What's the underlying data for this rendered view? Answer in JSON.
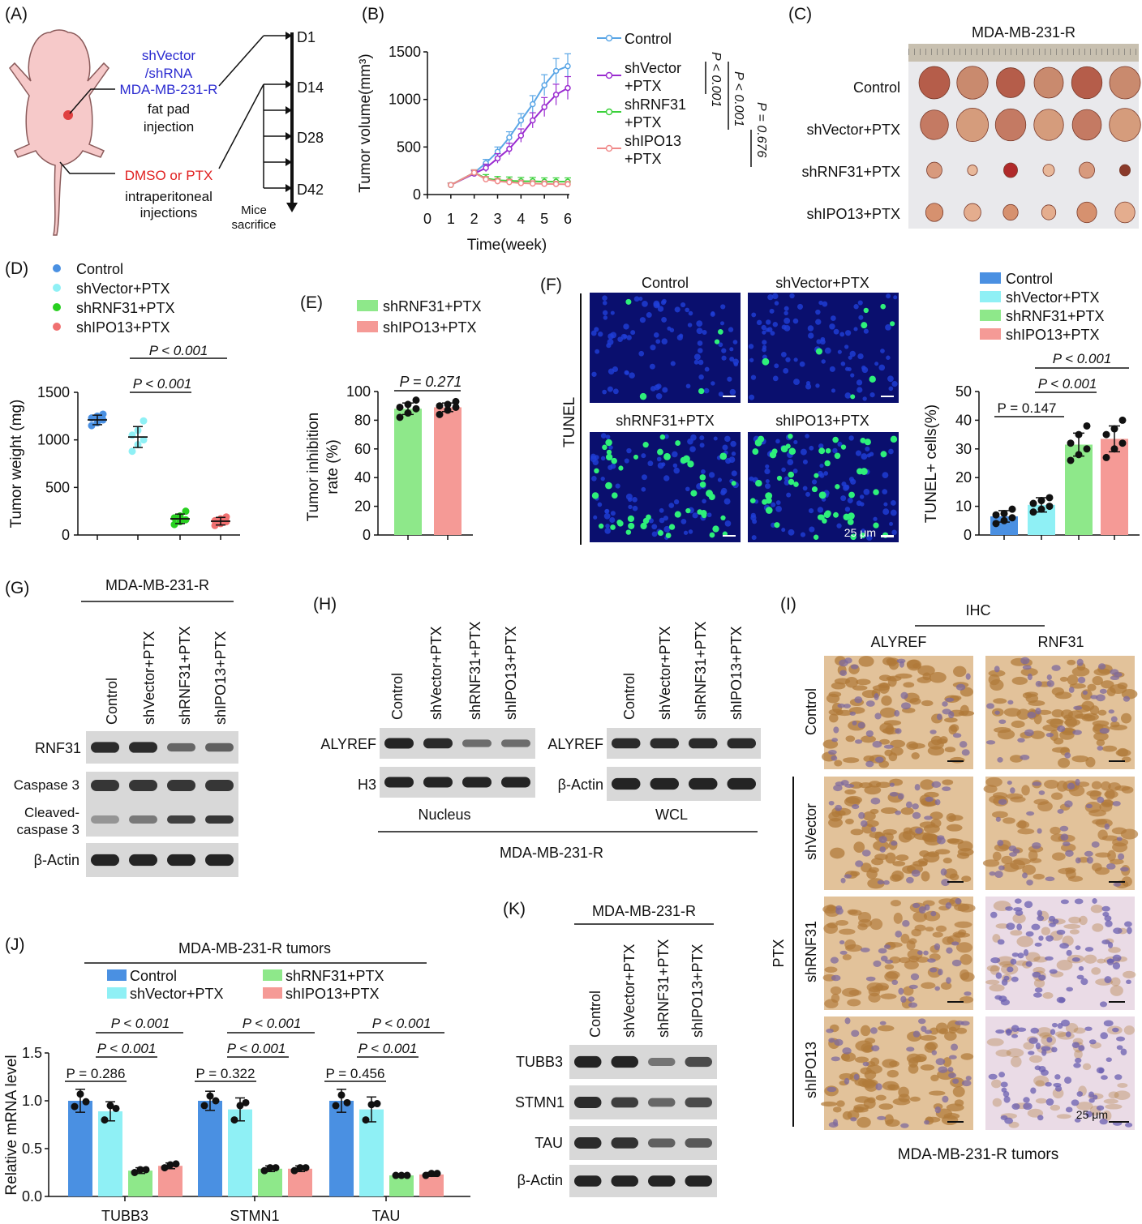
{
  "panels": {
    "A": {
      "letter": "(A)",
      "shvector": "shVector",
      "shrna": "/shRNA",
      "cell": "MDA-MB-231-R",
      "fatpad": "fat pad",
      "injection": "injection",
      "dmso": "DMSO or PTX",
      "ip1": "intraperitoneal",
      "ip2": "injections",
      "days": [
        "D1",
        "D14",
        "D28",
        "D42"
      ],
      "mice1": "Mice",
      "mice2": "sacrifice"
    },
    "B": {
      "letter": "(B)",
      "legend": [
        {
          "l1": "Control",
          "l2": ""
        },
        {
          "l1": "shVector",
          "l2": "+PTX"
        },
        {
          "l1": "shRNF31",
          "l2": "+PTX"
        },
        {
          "l1": "shIPO13",
          "l2": "+PTX"
        }
      ],
      "p1": "P < 0.001",
      "p2": "P < 0.001",
      "p3": "P = 0.676"
    },
    "C": {
      "letter": "(C)",
      "title": "MDA-MB-231-R",
      "rows": [
        "Control",
        "shVector+PTX",
        "shRNF31+PTX",
        "shIPO13+PTX"
      ]
    },
    "D": {
      "letter": "(D)",
      "legend": [
        "Control",
        "shVector+PTX",
        "shRNF31+PTX",
        "shIPO13+PTX"
      ],
      "p1": "P < 0.001",
      "p2": "P < 0.001"
    },
    "E": {
      "letter": "(E)",
      "legend": [
        "shRNF31+PTX",
        "shIPO13+PTX"
      ],
      "p": "P = 0.271"
    },
    "F": {
      "letter": "(F)",
      "side": "TUNEL",
      "cols": [
        "Control",
        "shVector+PTX",
        "shRNF31+PTX",
        "shIPO13+PTX"
      ],
      "scale": "25 μm",
      "legend": [
        "Control",
        "shVector+PTX",
        "shRNF31+PTX",
        "shIPO13+PTX"
      ],
      "p1": "P < 0.001",
      "p2": "P < 0.001",
      "p3": "P = 0.147"
    },
    "G": {
      "letter": "(G)",
      "title": "MDA-MB-231-R",
      "lanes": [
        "Control",
        "shVector+PTX",
        "shRNF31+PTX",
        "shIPO13+PTX"
      ],
      "blots": [
        "RNF31",
        "Caspase 3",
        "Cleaved-",
        "caspase 3",
        "β-Actin"
      ]
    },
    "H": {
      "letter": "(H)",
      "lanes": [
        "Control",
        "shVector+PTX",
        "shRNF31+PTX",
        "shIPO13+PTX"
      ],
      "blots": [
        "ALYREF",
        "H3",
        "ALYREF",
        "β-Actin"
      ],
      "nucleus": "Nucleus",
      "wcl": "WCL",
      "title": "MDA-MB-231-R"
    },
    "I": {
      "letter": "(I)",
      "ihc": "IHC",
      "cols": [
        "ALYREF",
        "RNF31"
      ],
      "rows": [
        "Control",
        "shVector",
        "shRNF31",
        "shIPO13"
      ],
      "ptx": "PTX",
      "scale": "25 μm",
      "footer": "MDA-MB-231-R tumors"
    },
    "J": {
      "letter": "(J)",
      "title": "MDA-MB-231-R tumors",
      "legend": [
        "Control",
        "shVector+PTX",
        "shRNF31+PTX",
        "shIPO13+PTX"
      ],
      "p_top": [
        "P < 0.001",
        "P < 0.001",
        "P < 0.001"
      ],
      "p_mid": [
        "P < 0.001",
        "P < 0.001",
        "P < 0.001"
      ],
      "p_low": [
        "P = 0.286",
        "P = 0.322",
        "P = 0.456"
      ]
    },
    "K": {
      "letter": "(K)",
      "title": "MDA-MB-231-R",
      "lanes": [
        "Control",
        "shVector+PTX",
        "shRNF31+PTX",
        "shIPO13+PTX"
      ],
      "blots": [
        "TUBB3",
        "STMN1",
        "TAU",
        "β-Actin"
      ]
    }
  },
  "colors": {
    "control": "#4a90e2",
    "shvector": "#8ff0f5",
    "shrnf31": "#8ee88a",
    "shipo13": "#f59a96",
    "lineControl": "#5aa6e6",
    "lineShVector": "#9a2bd0",
    "lineShRNF31": "#3ad13a",
    "lineShIPO13": "#f08a8a"
  },
  "chart_data": [
    {
      "id": "B",
      "type": "line",
      "x": [
        1,
        2,
        2.5,
        3,
        3.5,
        4,
        4.5,
        5,
        5.5,
        6
      ],
      "series": [
        {
          "name": "Control",
          "values": [
            100,
            230,
            330,
            450,
            600,
            780,
            950,
            1150,
            1300,
            1350
          ],
          "err": [
            20,
            30,
            40,
            50,
            60,
            70,
            90,
            110,
            130,
            130
          ]
        },
        {
          "name": "shVector+PTX",
          "values": [
            100,
            220,
            280,
            380,
            480,
            620,
            780,
            920,
            1050,
            1120
          ],
          "err": [
            20,
            30,
            40,
            50,
            60,
            70,
            80,
            100,
            110,
            120
          ]
        },
        {
          "name": "shRNF31+PTX",
          "values": [
            100,
            230,
            170,
            150,
            145,
            140,
            140,
            135,
            135,
            135
          ],
          "err": [
            20,
            30,
            40,
            40,
            40,
            40,
            40,
            40,
            40,
            40
          ]
        },
        {
          "name": "shIPO13+PTX",
          "values": [
            100,
            230,
            160,
            140,
            130,
            120,
            115,
            112,
            110,
            108
          ],
          "err": [
            20,
            30,
            30,
            30,
            30,
            30,
            30,
            30,
            30,
            30
          ]
        }
      ],
      "xlabel": "Time(week)",
      "ylabel": "Tumor volume(mm³)",
      "xlim": [
        0,
        6
      ],
      "ylim": [
        0,
        1500
      ],
      "xticks": [
        "0",
        "1",
        "2",
        "3",
        "4",
        "5",
        "6"
      ],
      "yticks": [
        "0",
        "500",
        "1000",
        "1500"
      ]
    },
    {
      "id": "D",
      "type": "scatter",
      "categories": [
        "Control",
        "shVector+PTX",
        "shRNF31+PTX",
        "shIPO13+PTX"
      ],
      "means": [
        1210,
        1030,
        170,
        145
      ],
      "sd": [
        50,
        110,
        50,
        40
      ],
      "points": [
        [
          1150,
          1180,
          1210,
          1230,
          1250,
          1270
        ],
        [
          880,
          950,
          1000,
          1050,
          1100,
          1200
        ],
        [
          110,
          140,
          160,
          180,
          200,
          250
        ],
        [
          100,
          120,
          140,
          150,
          170,
          190
        ]
      ],
      "ylabel": "Tumor weight (mg)",
      "ylim": [
        0,
        1500
      ],
      "yticks": [
        "0",
        "500",
        "1000",
        "1500"
      ]
    },
    {
      "id": "E",
      "type": "bar",
      "categories": [
        "shRNF31+PTX",
        "shIPO13+PTX"
      ],
      "values": [
        88,
        89
      ],
      "sd": [
        4,
        3
      ],
      "points": [
        [
          82,
          85,
          88,
          89,
          91,
          94
        ],
        [
          84,
          87,
          89,
          90,
          91,
          93
        ]
      ],
      "ylabel": "Tumor inhibition rate (%)",
      "ylim": [
        0,
        100
      ],
      "yticks": [
        "0",
        "20",
        "40",
        "60",
        "80",
        "100"
      ]
    },
    {
      "id": "F",
      "type": "bar",
      "categories": [
        "Control",
        "shVector+PTX",
        "shRNF31+PTX",
        "shIPO13+PTX"
      ],
      "values": [
        6.5,
        10.5,
        31.5,
        33.5
      ],
      "sd": [
        2,
        2.5,
        4,
        4.5
      ],
      "points": [
        [
          4,
          5,
          6,
          7,
          7.5,
          9
        ],
        [
          8,
          9,
          10,
          11,
          12,
          13
        ],
        [
          26,
          28,
          30,
          32,
          35,
          38
        ],
        [
          27,
          30,
          32,
          35,
          37,
          40
        ]
      ],
      "ylabel": "TUNEL+ cells(%)",
      "ylim": [
        0,
        50
      ],
      "yticks": [
        "0",
        "10",
        "20",
        "30",
        "40",
        "50"
      ]
    },
    {
      "id": "J",
      "type": "bar",
      "categories": [
        "TUBB3",
        "STMN1",
        "TAU"
      ],
      "series": [
        {
          "name": "Control",
          "values": [
            1.0,
            1.0,
            1.0
          ],
          "sd": [
            0.12,
            0.1,
            0.12
          ],
          "points": [
            [
              0.94,
              1.07,
              0.99
            ],
            [
              0.95,
              1.05,
              1.0
            ],
            [
              0.95,
              1.06,
              0.98
            ]
          ]
        },
        {
          "name": "shVector+PTX",
          "values": [
            0.89,
            0.91,
            0.91
          ],
          "sd": [
            0.1,
            0.12,
            0.13
          ],
          "points": [
            [
              0.8,
              0.95,
              0.92
            ],
            [
              0.8,
              0.95,
              0.98
            ],
            [
              0.8,
              0.96,
              0.97
            ]
          ]
        },
        {
          "name": "shRNF31+PTX",
          "values": [
            0.27,
            0.29,
            0.22
          ],
          "sd": [
            0.03,
            0.03,
            0.01
          ],
          "points": [
            [
              0.25,
              0.28,
              0.28
            ],
            [
              0.27,
              0.3,
              0.3
            ],
            [
              0.22,
              0.22,
              0.22
            ]
          ]
        },
        {
          "name": "shIPO13+PTX",
          "values": [
            0.32,
            0.29,
            0.23
          ],
          "sd": [
            0.03,
            0.03,
            0.02
          ],
          "points": [
            [
              0.3,
              0.33,
              0.34
            ],
            [
              0.27,
              0.3,
              0.3
            ],
            [
              0.22,
              0.24,
              0.24
            ]
          ]
        }
      ],
      "ylabel": "Relative mRNA level",
      "ylim": [
        0,
        1.5
      ],
      "yticks": [
        "0.0",
        "0.5",
        "1.0",
        "1.5"
      ]
    }
  ]
}
